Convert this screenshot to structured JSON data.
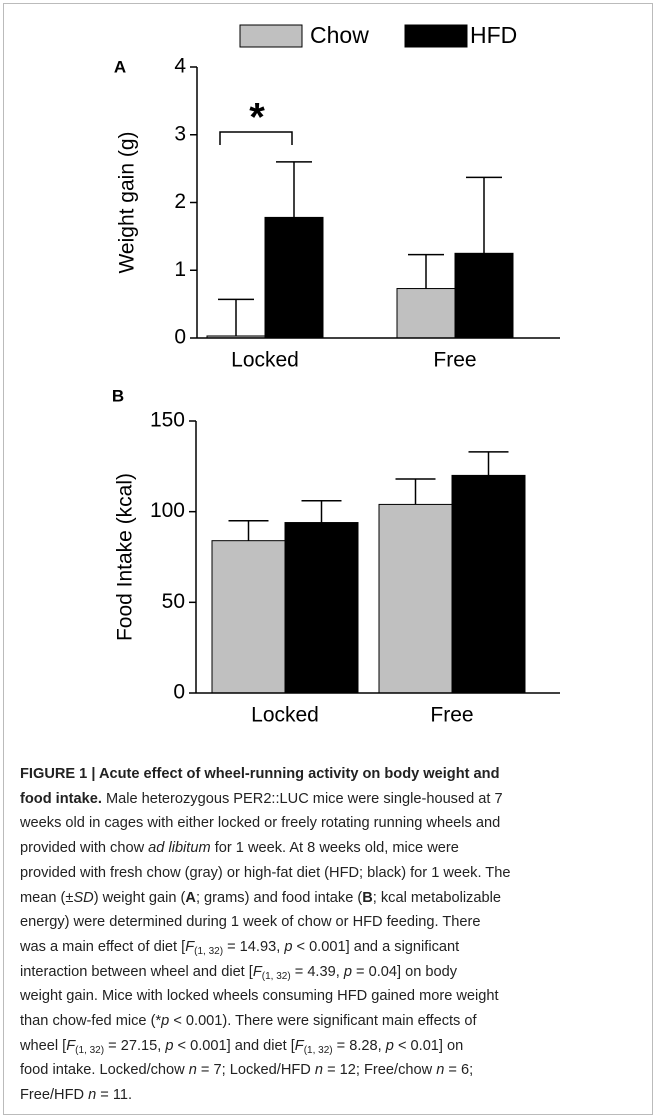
{
  "chart_data": [
    {
      "type": "bar",
      "panel": "A",
      "ylabel": "Weight gain (g)",
      "categories": [
        "Locked",
        "Free"
      ],
      "series": [
        {
          "name": "Chow",
          "color": "#c0c0c0",
          "values": [
            0.03,
            0.73
          ],
          "errors": [
            0.54,
            0.5
          ]
        },
        {
          "name": "HFD",
          "color": "#000000",
          "values": [
            1.78,
            1.25
          ],
          "errors": [
            0.82,
            1.12
          ]
        }
      ],
      "ylim": [
        0,
        4
      ],
      "yticks": [
        0,
        1,
        2,
        3,
        4
      ],
      "annotations": [
        {
          "text": "*"
        }
      ]
    },
    {
      "type": "bar",
      "panel": "B",
      "ylabel": "Food Intake (kcal)",
      "categories": [
        "Locked",
        "Free"
      ],
      "series": [
        {
          "values": [
            84,
            104
          ],
          "errors": [
            11,
            14
          ]
        },
        {
          "values": [
            94,
            120
          ],
          "errors": [
            12,
            13
          ]
        }
      ],
      "ylim": [
        0,
        150
      ],
      "yticks": [
        0,
        50,
        100,
        150
      ]
    }
  ],
  "caption": {
    "lines": [
      [
        {
          "t": "FIGURE 1 | Acute effect of wheel-running activity on body weight and",
          "s": "b"
        }
      ],
      [
        {
          "t": "food intake.",
          "s": "b"
        },
        " Male heterozygous PER2::LUC mice were single-housed at 7"
      ],
      [
        "weeks old in cages with either locked or freely rotating running wheels and"
      ],
      [
        "provided with chow ",
        {
          "t": "ad libitum",
          "s": "i"
        },
        " for 1 week. At 8 weeks old, mice were"
      ],
      [
        "provided with fresh chow (gray) or high-fat diet (HFD; black) for 1 week. The"
      ],
      [
        "mean (±",
        {
          "t": "SD",
          "s": "i"
        },
        ") weight gain (",
        {
          "t": "A",
          "s": "b"
        },
        "; grams) and food intake (",
        {
          "t": "B",
          "s": "b"
        },
        "; kcal metabolizable"
      ],
      [
        "energy) were determined during 1 week of chow or HFD feeding. There"
      ],
      [
        "was a main effect of diet [",
        {
          "t": "F",
          "s": "i"
        },
        {
          "t": "(1, 32)",
          "s": "sub"
        },
        " = 14.93, ",
        {
          "t": "p",
          "s": "i"
        },
        " < 0.001] and a significant"
      ],
      [
        "interaction between wheel and diet [",
        {
          "t": "F",
          "s": "i"
        },
        {
          "t": "(1, 32)",
          "s": "sub"
        },
        " = 4.39, ",
        {
          "t": "p",
          "s": "i"
        },
        " = 0.04] on body"
      ],
      [
        "weight gain. Mice with locked wheels consuming HFD gained more weight"
      ],
      [
        "than chow-fed mice (*",
        {
          "t": "p",
          "s": "i"
        },
        " < 0.001). There were significant main effects of"
      ],
      [
        "wheel [",
        {
          "t": "F",
          "s": "i"
        },
        {
          "t": "(1, 32)",
          "s": "sub"
        },
        " = 27.15, ",
        {
          "t": "p",
          "s": "i"
        },
        " < 0.001] and diet [",
        {
          "t": "F",
          "s": "i"
        },
        {
          "t": "(1, 32)",
          "s": "sub"
        },
        " = 8.28, ",
        {
          "t": "p",
          "s": "i"
        },
        " < 0.01] on"
      ],
      [
        "food intake. Locked/chow ",
        {
          "t": "n",
          "s": "i"
        },
        " = 7; Locked/HFD ",
        {
          "t": "n",
          "s": "i"
        },
        " = 12; Free/chow ",
        {
          "t": "n",
          "s": "i"
        },
        " = 6;"
      ],
      [
        "Free/HFD ",
        {
          "t": "n",
          "s": "i"
        },
        " = 11."
      ]
    ]
  }
}
